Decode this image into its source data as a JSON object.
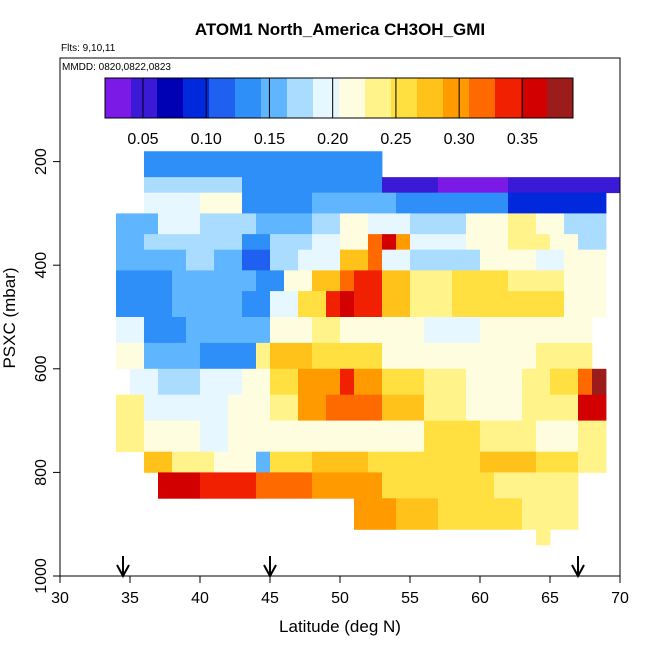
{
  "chart_data": {
    "type": "heatmap",
    "title": "ATOM1 North_America CH3OH_GMI",
    "subtitle_flights": "Flts: 9,10,11",
    "subtitle_dates": "MMDD: 0820,0822,0823",
    "xlabel": "Latitude (deg N)",
    "ylabel": "PSXC (mbar)",
    "xlim": [
      30,
      70
    ],
    "ylim": [
      1000,
      0
    ],
    "x_ticks": [
      30,
      35,
      40,
      45,
      50,
      55,
      60,
      65,
      70
    ],
    "y_ticks": [
      200,
      400,
      600,
      800,
      1000
    ],
    "colorbar": {
      "range": [
        0.02,
        0.39
      ],
      "ticks": [
        0.05,
        0.1,
        0.15,
        0.2,
        0.25,
        0.3,
        0.35
      ],
      "tick_labels": [
        "0.05",
        "0.10",
        "0.15",
        "0.20",
        "0.25",
        "0.30",
        "0.35"
      ],
      "colors": [
        "#7b1ae6",
        "#3a1ad6",
        "#0000b4",
        "#0028dc",
        "#2060f0",
        "#2f8ff8",
        "#5fb6ff",
        "#a9dcff",
        "#e6f7ff",
        "#fffde0",
        "#fff38a",
        "#ffe040",
        "#ffc21a",
        "#ff9a00",
        "#ff6a00",
        "#f02000",
        "#d20000",
        "#9c1c1c"
      ]
    },
    "arrows_latitude": [
      34.5,
      45,
      67
    ],
    "grid": false,
    "rows": [
      {
        "p": [
          180,
          230
        ],
        "segs": [
          [
            36,
            53,
            0.13
          ]
        ]
      },
      {
        "p": [
          230,
          260
        ],
        "segs": [
          [
            36,
            43,
            0.18
          ],
          [
            43,
            53,
            0.14
          ],
          [
            53,
            57,
            0.06
          ],
          [
            57,
            62,
            0.04
          ],
          [
            62,
            70,
            0.06
          ]
        ]
      },
      {
        "p": [
          260,
          300
        ],
        "segs": [
          [
            36,
            40,
            0.19
          ],
          [
            40,
            43,
            0.21
          ],
          [
            43,
            48,
            0.14
          ],
          [
            48,
            54,
            0.16
          ],
          [
            54,
            58,
            0.14
          ],
          [
            58,
            62,
            0.13
          ],
          [
            62,
            69,
            0.1
          ]
        ]
      },
      {
        "p": [
          300,
          340
        ],
        "segs": [
          [
            34,
            37,
            0.16
          ],
          [
            37,
            40,
            0.19
          ],
          [
            40,
            44,
            0.17
          ],
          [
            44,
            48,
            0.16
          ],
          [
            48,
            50,
            0.18
          ],
          [
            50,
            52,
            0.22
          ],
          [
            52,
            55,
            0.2
          ],
          [
            55,
            59,
            0.17
          ],
          [
            59,
            62,
            0.21
          ],
          [
            62,
            64,
            0.23
          ],
          [
            64,
            66,
            0.21
          ],
          [
            66,
            69,
            0.17
          ]
        ]
      },
      {
        "p": [
          340,
          370
        ],
        "segs": [
          [
            34,
            36,
            0.15
          ],
          [
            36,
            43,
            0.17
          ],
          [
            43,
            45,
            0.13
          ],
          [
            45,
            48,
            0.18
          ],
          [
            48,
            50,
            0.19
          ],
          [
            50,
            52,
            0.21
          ],
          [
            52,
            53,
            0.31
          ],
          [
            53,
            54,
            0.36
          ],
          [
            54,
            55,
            0.3
          ],
          [
            55,
            59,
            0.19
          ],
          [
            59,
            62,
            0.21
          ],
          [
            62,
            65,
            0.24
          ],
          [
            65,
            67,
            0.21
          ],
          [
            67,
            69,
            0.18
          ]
        ]
      },
      {
        "p": [
          370,
          410
        ],
        "segs": [
          [
            34,
            39,
            0.15
          ],
          [
            39,
            41,
            0.17
          ],
          [
            41,
            43,
            0.15
          ],
          [
            43,
            45,
            0.12
          ],
          [
            45,
            47,
            0.18
          ],
          [
            47,
            50,
            0.2
          ],
          [
            50,
            52,
            0.27
          ],
          [
            52,
            53,
            0.31
          ],
          [
            53,
            55,
            0.2
          ],
          [
            55,
            60,
            0.18
          ],
          [
            60,
            64,
            0.22
          ],
          [
            64,
            66,
            0.2
          ],
          [
            66,
            69,
            0.22
          ]
        ]
      },
      {
        "p": [
          410,
          450
        ],
        "segs": [
          [
            34,
            38,
            0.14
          ],
          [
            38,
            44,
            0.16
          ],
          [
            44,
            46,
            0.13
          ],
          [
            46,
            48,
            0.22
          ],
          [
            48,
            50,
            0.27
          ],
          [
            50,
            51,
            0.31
          ],
          [
            51,
            53,
            0.33
          ],
          [
            53,
            55,
            0.28
          ],
          [
            55,
            58,
            0.23
          ],
          [
            58,
            62,
            0.25
          ],
          [
            62,
            66,
            0.24
          ],
          [
            66,
            69,
            0.22
          ]
        ]
      },
      {
        "p": [
          450,
          500
        ],
        "segs": [
          [
            34,
            38,
            0.14
          ],
          [
            38,
            43,
            0.15
          ],
          [
            43,
            45,
            0.13
          ],
          [
            45,
            47,
            0.2
          ],
          [
            47,
            49,
            0.26
          ],
          [
            49,
            50,
            0.33
          ],
          [
            50,
            51,
            0.36
          ],
          [
            51,
            53,
            0.33
          ],
          [
            53,
            55,
            0.28
          ],
          [
            55,
            58,
            0.23
          ],
          [
            58,
            62,
            0.26
          ],
          [
            62,
            66,
            0.25
          ],
          [
            66,
            69,
            0.22
          ]
        ]
      },
      {
        "p": [
          500,
          550
        ],
        "segs": [
          [
            34,
            36,
            0.19
          ],
          [
            36,
            39,
            0.14
          ],
          [
            39,
            42,
            0.16
          ],
          [
            42,
            45,
            0.15
          ],
          [
            45,
            48,
            0.21
          ],
          [
            48,
            50,
            0.24
          ],
          [
            50,
            52,
            0.22
          ],
          [
            52,
            56,
            0.21
          ],
          [
            56,
            60,
            0.2
          ],
          [
            60,
            64,
            0.22
          ],
          [
            64,
            68,
            0.21
          ]
        ]
      },
      {
        "p": [
          550,
          600
        ],
        "segs": [
          [
            34,
            36,
            0.21
          ],
          [
            36,
            40,
            0.16
          ],
          [
            40,
            44,
            0.13
          ],
          [
            44,
            45,
            0.23
          ],
          [
            45,
            48,
            0.27
          ],
          [
            48,
            50,
            0.26
          ],
          [
            50,
            53,
            0.25
          ],
          [
            53,
            56,
            0.22
          ],
          [
            56,
            60,
            0.21
          ],
          [
            60,
            64,
            0.21
          ],
          [
            64,
            68,
            0.23
          ]
        ]
      },
      {
        "p": [
          600,
          650
        ],
        "segs": [
          [
            35,
            37,
            0.2
          ],
          [
            37,
            40,
            0.17
          ],
          [
            40,
            43,
            0.2
          ],
          [
            43,
            45,
            0.21
          ],
          [
            45,
            47,
            0.25
          ],
          [
            47,
            50,
            0.29
          ],
          [
            50,
            51,
            0.33
          ],
          [
            51,
            53,
            0.3
          ],
          [
            53,
            56,
            0.25
          ],
          [
            56,
            59,
            0.23
          ],
          [
            59,
            63,
            0.22
          ],
          [
            63,
            65,
            0.24
          ],
          [
            65,
            67,
            0.26
          ],
          [
            67,
            68,
            0.32
          ],
          [
            68,
            69,
            0.38
          ]
        ]
      },
      {
        "p": [
          650,
          700
        ],
        "segs": [
          [
            34,
            36,
            0.23
          ],
          [
            36,
            40,
            0.2
          ],
          [
            40,
            42,
            0.19
          ],
          [
            42,
            45,
            0.21
          ],
          [
            45,
            47,
            0.23
          ],
          [
            47,
            49,
            0.3
          ],
          [
            49,
            51,
            0.32
          ],
          [
            51,
            53,
            0.31
          ],
          [
            53,
            56,
            0.28
          ],
          [
            56,
            59,
            0.24
          ],
          [
            59,
            63,
            0.22
          ],
          [
            63,
            67,
            0.24
          ],
          [
            67,
            68,
            0.36
          ],
          [
            68,
            69,
            0.35
          ]
        ]
      },
      {
        "p": [
          700,
          760
        ],
        "segs": [
          [
            34,
            36,
            0.23
          ],
          [
            36,
            40,
            0.22
          ],
          [
            40,
            42,
            0.2
          ],
          [
            42,
            45,
            0.21
          ],
          [
            45,
            48,
            0.22
          ],
          [
            48,
            52,
            0.22
          ],
          [
            52,
            56,
            0.22
          ],
          [
            56,
            60,
            0.25
          ],
          [
            60,
            64,
            0.23
          ],
          [
            64,
            67,
            0.22
          ],
          [
            67,
            69,
            0.23
          ]
        ]
      },
      {
        "p": [
          760,
          800
        ],
        "segs": [
          [
            36,
            38,
            0.27
          ],
          [
            38,
            41,
            0.24
          ],
          [
            41,
            44,
            0.22
          ],
          [
            44,
            45,
            0.16
          ],
          [
            45,
            48,
            0.26
          ],
          [
            48,
            52,
            0.27
          ],
          [
            52,
            56,
            0.26
          ],
          [
            56,
            60,
            0.25
          ],
          [
            60,
            64,
            0.27
          ],
          [
            64,
            67,
            0.25
          ],
          [
            67,
            69,
            0.24
          ]
        ]
      },
      {
        "p": [
          800,
          850
        ],
        "segs": [
          [
            37,
            40,
            0.35
          ],
          [
            40,
            44,
            0.34
          ],
          [
            44,
            48,
            0.31
          ],
          [
            48,
            53,
            0.29
          ],
          [
            53,
            57,
            0.26
          ],
          [
            57,
            61,
            0.25
          ],
          [
            61,
            67,
            0.23
          ]
        ]
      },
      {
        "p": [
          850,
          910
        ],
        "segs": [
          [
            51,
            54,
            0.29
          ],
          [
            54,
            57,
            0.28
          ],
          [
            57,
            60,
            0.26
          ],
          [
            60,
            63,
            0.25
          ],
          [
            63,
            67,
            0.23
          ]
        ]
      },
      {
        "p": [
          910,
          940
        ],
        "segs": [
          [
            64,
            65,
            0.23
          ]
        ]
      }
    ]
  }
}
